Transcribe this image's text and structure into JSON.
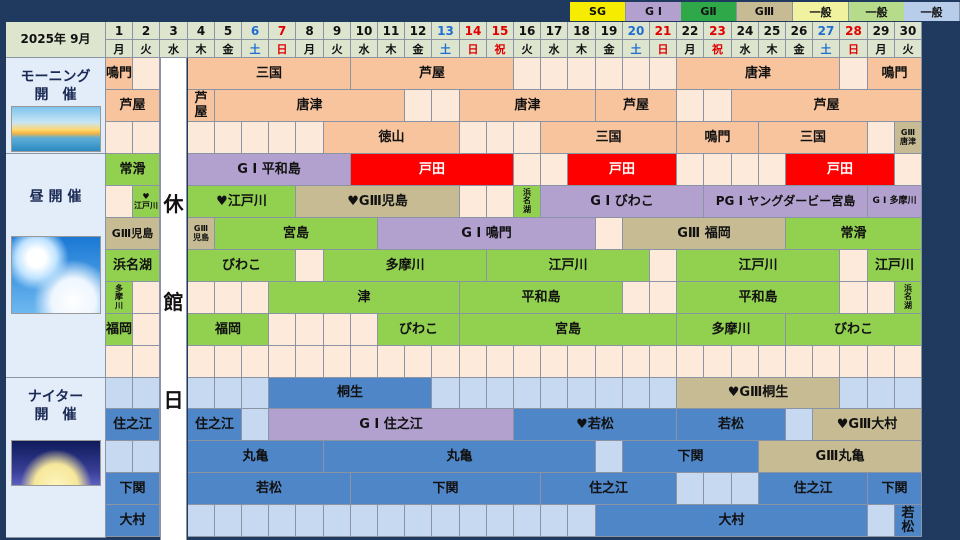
{
  "month_label": "2025年 9月",
  "legend": [
    "SG",
    "G Ⅰ",
    "GⅡ",
    "GⅢ",
    "一般",
    "一般",
    "一般"
  ],
  "days": [
    {
      "d": "1",
      "w": "月",
      "t": "n"
    },
    {
      "d": "2",
      "w": "火",
      "t": "n"
    },
    {
      "d": "3",
      "w": "水",
      "t": "n"
    },
    {
      "d": "4",
      "w": "木",
      "t": "n"
    },
    {
      "d": "5",
      "w": "金",
      "t": "n"
    },
    {
      "d": "6",
      "w": "土",
      "t": "sat"
    },
    {
      "d": "7",
      "w": "日",
      "t": "sun"
    },
    {
      "d": "8",
      "w": "月",
      "t": "n"
    },
    {
      "d": "9",
      "w": "火",
      "t": "n"
    },
    {
      "d": "10",
      "w": "水",
      "t": "n"
    },
    {
      "d": "11",
      "w": "木",
      "t": "n"
    },
    {
      "d": "12",
      "w": "金",
      "t": "n"
    },
    {
      "d": "13",
      "w": "土",
      "t": "sat"
    },
    {
      "d": "14",
      "w": "日",
      "t": "sun"
    },
    {
      "d": "15",
      "w": "祝",
      "t": "sun"
    },
    {
      "d": "16",
      "w": "火",
      "t": "n"
    },
    {
      "d": "17",
      "w": "水",
      "t": "n"
    },
    {
      "d": "18",
      "w": "木",
      "t": "n"
    },
    {
      "d": "19",
      "w": "金",
      "t": "n"
    },
    {
      "d": "20",
      "w": "土",
      "t": "sat"
    },
    {
      "d": "21",
      "w": "日",
      "t": "sun"
    },
    {
      "d": "22",
      "w": "月",
      "t": "n"
    },
    {
      "d": "23",
      "w": "祝",
      "t": "sun"
    },
    {
      "d": "24",
      "w": "水",
      "t": "n"
    },
    {
      "d": "25",
      "w": "木",
      "t": "n"
    },
    {
      "d": "26",
      "w": "金",
      "t": "n"
    },
    {
      "d": "27",
      "w": "土",
      "t": "sat"
    },
    {
      "d": "28",
      "w": "日",
      "t": "sun"
    },
    {
      "d": "29",
      "w": "月",
      "t": "n"
    },
    {
      "d": "30",
      "w": "火",
      "t": "n"
    }
  ],
  "sections": [
    {
      "name": "morning",
      "label": [
        "モーニング",
        "開　催"
      ]
    },
    {
      "name": "day",
      "label": [
        "昼 開 催"
      ]
    },
    {
      "name": "nighter",
      "label": [
        "ナイター",
        "開　催"
      ]
    }
  ],
  "closed_label": [
    "休",
    "館",
    "日"
  ],
  "colors": {
    "SG": "#f5ec00",
    "G1": "#b2a1cf",
    "G2": "#2fa84a",
    "G3": "#c6bb93",
    "red": "#ff0000",
    "morning": "#f7c49d",
    "morning_bg": "#fde9d9",
    "day": "#92d050",
    "day_bg": "#fdeadb",
    "night": "#4f86c8",
    "night_bg": "#c6d9f0",
    "day_empty": "#fbe4d5"
  },
  "rows": [
    {
      "sect": "morning",
      "bg": "morning_bg",
      "events": [
        {
          "s": 1,
          "e": 1,
          "t": "鳴門",
          "c": "morning"
        },
        {
          "s": 4,
          "e": 9,
          "t": "三国",
          "c": "morning"
        },
        {
          "s": 10,
          "e": 15,
          "t": "芦屋",
          "c": "morning"
        },
        {
          "s": 22,
          "e": 27,
          "t": "唐津",
          "c": "morning"
        },
        {
          "s": 29,
          "e": 30,
          "t": "鳴門",
          "c": "morning"
        }
      ]
    },
    {
      "sect": "morning",
      "bg": "morning_bg",
      "events": [
        {
          "s": 1,
          "e": 2,
          "t": "芦屋",
          "c": "morning"
        },
        {
          "s": 4,
          "e": 4,
          "t": "芦\n屋",
          "c": "morning"
        },
        {
          "s": 5,
          "e": 11,
          "t": "唐津",
          "c": "morning"
        },
        {
          "s": 14,
          "e": 18,
          "t": "唐津",
          "c": "morning"
        },
        {
          "s": 19,
          "e": 21,
          "t": "芦屋",
          "c": "morning"
        },
        {
          "s": 24,
          "e": 30,
          "t": "芦屋",
          "c": "morning"
        }
      ]
    },
    {
      "sect": "morning",
      "bg": "morning_bg",
      "events": [
        {
          "s": 9,
          "e": 13,
          "t": "徳山",
          "c": "morning"
        },
        {
          "s": 17,
          "e": 21,
          "t": "三国",
          "c": "morning"
        },
        {
          "s": 22,
          "e": 24,
          "t": "鳴門",
          "c": "morning"
        },
        {
          "s": 25,
          "e": 28,
          "t": "三国",
          "c": "morning"
        },
        {
          "s": 30,
          "e": 30,
          "t": "GⅢ\n唐津",
          "c": "G3",
          "small": true
        }
      ]
    },
    {
      "sect": "day",
      "bg": "day_bg",
      "events": [
        {
          "s": 1,
          "e": 2,
          "t": "常滑",
          "c": "day"
        },
        {
          "s": 4,
          "e": 9,
          "t": "G Ⅰ 平和島",
          "c": "G1"
        },
        {
          "s": 10,
          "e": 15,
          "t": "戸田",
          "c": "red",
          "fc": "#fff"
        },
        {
          "s": 18,
          "e": 21,
          "t": "戸田",
          "c": "red",
          "fc": "#fff"
        },
        {
          "s": 26,
          "e": 29,
          "t": "戸田",
          "c": "red",
          "fc": "#fff"
        }
      ]
    },
    {
      "sect": "day",
      "bg": "day_bg",
      "events": [
        {
          "s": 2,
          "e": 2,
          "t": "♥\n江戸川",
          "c": "day",
          "small": true
        },
        {
          "s": 4,
          "e": 7,
          "t": "♥江戸川",
          "c": "day"
        },
        {
          "s": 8,
          "e": 13,
          "t": "♥GⅢ児島",
          "c": "G3"
        },
        {
          "s": 16,
          "e": 16,
          "t": "浜\n名\n湖",
          "c": "day",
          "small": true
        },
        {
          "s": 17,
          "e": 22,
          "t": "G Ⅰ びわこ",
          "c": "G1"
        },
        {
          "s": 23,
          "e": 28,
          "t": "PG Ⅰ ヤングダービー宮島",
          "c": "G1",
          "fs": 12
        },
        {
          "s": 29,
          "e": 30,
          "t": "G Ⅰ 多摩川",
          "c": "G1",
          "fs": 9
        }
      ]
    },
    {
      "sect": "day",
      "bg": "day_bg",
      "events": [
        {
          "s": 1,
          "e": 2,
          "t": "GⅢ児島",
          "c": "G3",
          "fs": 11
        },
        {
          "s": 4,
          "e": 4,
          "t": "GⅢ\n児島",
          "c": "G3",
          "small": true
        },
        {
          "s": 5,
          "e": 10,
          "t": "宮島",
          "c": "day"
        },
        {
          "s": 11,
          "e": 18,
          "t": "G Ⅰ 鳴門",
          "c": "G1"
        },
        {
          "s": 20,
          "e": 25,
          "t": "GⅢ 福岡",
          "c": "G3"
        },
        {
          "s": 26,
          "e": 30,
          "t": "常滑",
          "c": "day"
        }
      ]
    },
    {
      "sect": "day",
      "bg": "day_bg",
      "events": [
        {
          "s": 1,
          "e": 2,
          "t": "浜名湖",
          "c": "day"
        },
        {
          "s": 4,
          "e": 7,
          "t": "びわこ",
          "c": "day"
        },
        {
          "s": 9,
          "e": 14,
          "t": "多摩川",
          "c": "day"
        },
        {
          "s": 15,
          "e": 20,
          "t": "江戸川",
          "c": "day"
        },
        {
          "s": 22,
          "e": 27,
          "t": "江戸川",
          "c": "day"
        },
        {
          "s": 29,
          "e": 30,
          "t": "江戸川",
          "c": "day"
        }
      ]
    },
    {
      "sect": "day",
      "bg": "day_bg",
      "events": [
        {
          "s": 1,
          "e": 1,
          "t": "多\n摩\n川",
          "c": "day",
          "small": true
        },
        {
          "s": 7,
          "e": 13,
          "t": "津",
          "c": "day"
        },
        {
          "s": 14,
          "e": 19,
          "t": "平和島",
          "c": "day"
        },
        {
          "s": 22,
          "e": 27,
          "t": "平和島",
          "c": "day"
        },
        {
          "s": 30,
          "e": 30,
          "t": "浜\n名\n湖",
          "c": "day",
          "small": true
        }
      ]
    },
    {
      "sect": "day",
      "bg": "day_bg",
      "events": [
        {
          "s": 1,
          "e": 1,
          "t": "福岡",
          "c": "day"
        },
        {
          "s": 4,
          "e": 6,
          "t": "福岡",
          "c": "day"
        },
        {
          "s": 11,
          "e": 13,
          "t": "びわこ",
          "c": "day"
        },
        {
          "s": 14,
          "e": 21,
          "t": "宮島",
          "c": "day"
        },
        {
          "s": 22,
          "e": 25,
          "t": "多摩川",
          "c": "day"
        },
        {
          "s": 26,
          "e": 30,
          "t": "びわこ",
          "c": "day"
        }
      ]
    },
    {
      "sect": "day",
      "bg": "day_bg",
      "events": []
    },
    {
      "sect": "nighter",
      "bg": "night_bg",
      "events": [
        {
          "s": 7,
          "e": 12,
          "t": "桐生",
          "c": "night"
        },
        {
          "s": 22,
          "e": 27,
          "t": "♥GⅢ桐生",
          "c": "G3"
        }
      ]
    },
    {
      "sect": "nighter",
      "bg": "night_bg",
      "events": [
        {
          "s": 1,
          "e": 2,
          "t": "住之江",
          "c": "night"
        },
        {
          "s": 4,
          "e": 5,
          "t": "住之江",
          "c": "night"
        },
        {
          "s": 7,
          "e": 15,
          "t": "G Ⅰ 住之江",
          "c": "G1"
        },
        {
          "s": 16,
          "e": 21,
          "t": "♥若松",
          "c": "night"
        },
        {
          "s": 22,
          "e": 25,
          "t": "若松",
          "c": "night"
        },
        {
          "s": 27,
          "e": 30,
          "t": "♥GⅢ大村",
          "c": "G3"
        }
      ]
    },
    {
      "sect": "nighter",
      "bg": "night_bg",
      "events": [
        {
          "s": 4,
          "e": 8,
          "t": "丸亀",
          "c": "night"
        },
        {
          "s": 9,
          "e": 18,
          "t": "丸亀",
          "c": "night"
        },
        {
          "s": 20,
          "e": 24,
          "t": "下関",
          "c": "night"
        },
        {
          "s": 25,
          "e": 30,
          "t": "GⅢ丸亀",
          "c": "G3"
        }
      ]
    },
    {
      "sect": "nighter",
      "bg": "night_bg",
      "events": [
        {
          "s": 1,
          "e": 2,
          "t": "下関",
          "c": "night"
        },
        {
          "s": 4,
          "e": 9,
          "t": "若松",
          "c": "night"
        },
        {
          "s": 10,
          "e": 16,
          "t": "下関",
          "c": "night"
        },
        {
          "s": 17,
          "e": 21,
          "t": "住之江",
          "c": "night"
        },
        {
          "s": 25,
          "e": 28,
          "t": "住之江",
          "c": "night"
        },
        {
          "s": 29,
          "e": 30,
          "t": "下関",
          "c": "night"
        }
      ]
    },
    {
      "sect": "nighter",
      "bg": "night_bg",
      "events": [
        {
          "s": 1,
          "e": 2,
          "t": "大村",
          "c": "night"
        },
        {
          "s": 19,
          "e": 28,
          "t": "大村",
          "c": "night"
        },
        {
          "s": 30,
          "e": 30,
          "t": "若\n松",
          "c": "night"
        }
      ]
    }
  ]
}
